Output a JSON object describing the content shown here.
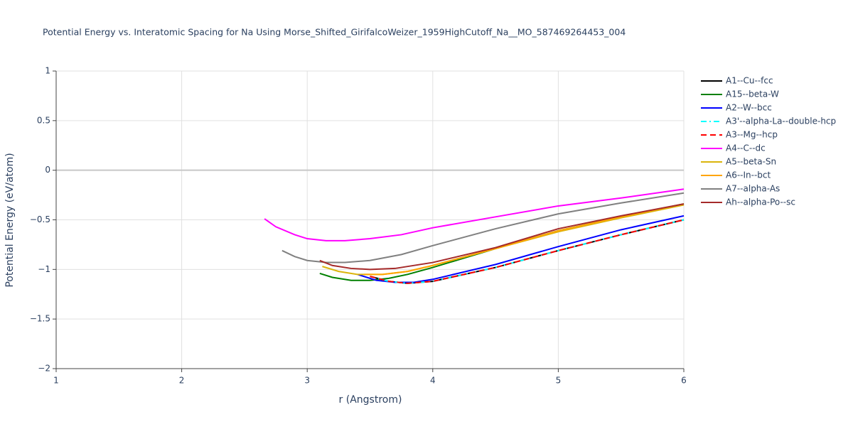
{
  "chart_data": {
    "type": "line",
    "title": "Potential Energy vs. Interatomic Spacing for Na Using Morse_Shifted_GirifalcoWeizer_1959HighCutoff_Na__MO_587469264453_004",
    "x_label": "r (Angstrom)",
    "y_label": "Potential Energy (eV/atom)",
    "xlim": [
      1,
      6
    ],
    "ylim": [
      -2,
      1
    ],
    "xticks": [
      1,
      2,
      3,
      4,
      5,
      6
    ],
    "yticks": [
      {
        "value": -2,
        "label": "−2"
      },
      {
        "value": -1.5,
        "label": "−1.5"
      },
      {
        "value": -1,
        "label": "−1"
      },
      {
        "value": -0.5,
        "label": "−0.5"
      },
      0,
      0.5,
      1
    ],
    "grid": true,
    "series": [
      {
        "name": "A1--Cu--fcc",
        "color": "#000000",
        "dash": "solid",
        "x": [
          3.5,
          3.65,
          3.8,
          4.0,
          4.5,
          5.0,
          5.5,
          6.0
        ],
        "values": [
          -1.07,
          -1.12,
          -1.14,
          -1.12,
          -0.98,
          -0.81,
          -0.65,
          -0.5
        ]
      },
      {
        "name": "A15--beta-W",
        "color": "#008000",
        "dash": "solid",
        "x": [
          3.1,
          3.2,
          3.35,
          3.5,
          3.65,
          3.8,
          4.0,
          4.5,
          5.0,
          5.5,
          6.0
        ],
        "values": [
          -1.04,
          -1.08,
          -1.11,
          -1.11,
          -1.09,
          -1.05,
          -0.98,
          -0.79,
          -0.61,
          -0.47,
          -0.34
        ]
      },
      {
        "name": "A2--W--bcc",
        "color": "#0000ff",
        "dash": "solid",
        "x": [
          3.4,
          3.55,
          3.7,
          3.85,
          4.0,
          4.5,
          5.0,
          5.5,
          6.0
        ],
        "values": [
          -1.05,
          -1.11,
          -1.13,
          -1.13,
          -1.1,
          -0.95,
          -0.77,
          -0.6,
          -0.46
        ]
      },
      {
        "name": "A3'--alpha-La--double-hcp",
        "color": "#00ffff",
        "dash": "dashdot",
        "x": [
          3.5,
          3.65,
          3.8,
          4.0,
          4.5,
          5.0,
          5.5,
          6.0
        ],
        "values": [
          -1.07,
          -1.12,
          -1.14,
          -1.12,
          -0.98,
          -0.81,
          -0.65,
          -0.5
        ]
      },
      {
        "name": "A3--Mg--hcp",
        "color": "#ff0000",
        "dash": "dash",
        "x": [
          3.5,
          3.65,
          3.8,
          4.0,
          4.5,
          5.0,
          5.5,
          6.0
        ],
        "values": [
          -1.07,
          -1.12,
          -1.14,
          -1.12,
          -0.98,
          -0.81,
          -0.65,
          -0.5
        ]
      },
      {
        "name": "A4--C--dc",
        "color": "#ff00ff",
        "dash": "solid",
        "x": [
          2.66,
          2.75,
          2.9,
          3.0,
          3.15,
          3.3,
          3.5,
          3.75,
          4.0,
          4.5,
          5.0,
          5.5,
          6.0
        ],
        "values": [
          -0.49,
          -0.57,
          -0.65,
          -0.69,
          -0.71,
          -0.71,
          -0.69,
          -0.65,
          -0.58,
          -0.47,
          -0.36,
          -0.28,
          -0.19
        ]
      },
      {
        "name": "A5--beta-Sn",
        "color": "#dbb40c",
        "dash": "solid",
        "x": [
          3.12,
          3.25,
          3.4,
          3.6,
          3.8,
          4.0,
          4.5,
          5.0,
          5.5,
          6.0
        ],
        "values": [
          -0.97,
          -1.02,
          -1.05,
          -1.05,
          -1.02,
          -0.96,
          -0.79,
          -0.62,
          -0.48,
          -0.35
        ]
      },
      {
        "name": "A6--In--bct",
        "color": "#ffa500",
        "dash": "solid",
        "x": [
          3.45,
          3.6,
          3.8,
          4.0,
          4.5,
          5.0,
          5.5,
          6.0
        ],
        "values": [
          -1.05,
          -1.05,
          -1.02,
          -0.96,
          -0.79,
          -0.61,
          -0.47,
          -0.34
        ]
      },
      {
        "name": "A7--alpha-As",
        "color": "#808080",
        "dash": "solid",
        "x": [
          2.8,
          2.9,
          3.0,
          3.15,
          3.3,
          3.5,
          3.75,
          4.0,
          4.5,
          5.0,
          5.5,
          6.0
        ],
        "values": [
          -0.81,
          -0.87,
          -0.91,
          -0.93,
          -0.93,
          -0.91,
          -0.85,
          -0.76,
          -0.59,
          -0.44,
          -0.33,
          -0.23
        ]
      },
      {
        "name": "Ah--alpha-Po--sc",
        "color": "#a52a2a",
        "dash": "solid",
        "x": [
          3.1,
          3.2,
          3.35,
          3.5,
          3.7,
          4.0,
          4.5,
          5.0,
          5.5,
          6.0
        ],
        "values": [
          -0.91,
          -0.96,
          -0.99,
          -1.0,
          -0.99,
          -0.93,
          -0.78,
          -0.59,
          -0.46,
          -0.34
        ]
      }
    ]
  }
}
